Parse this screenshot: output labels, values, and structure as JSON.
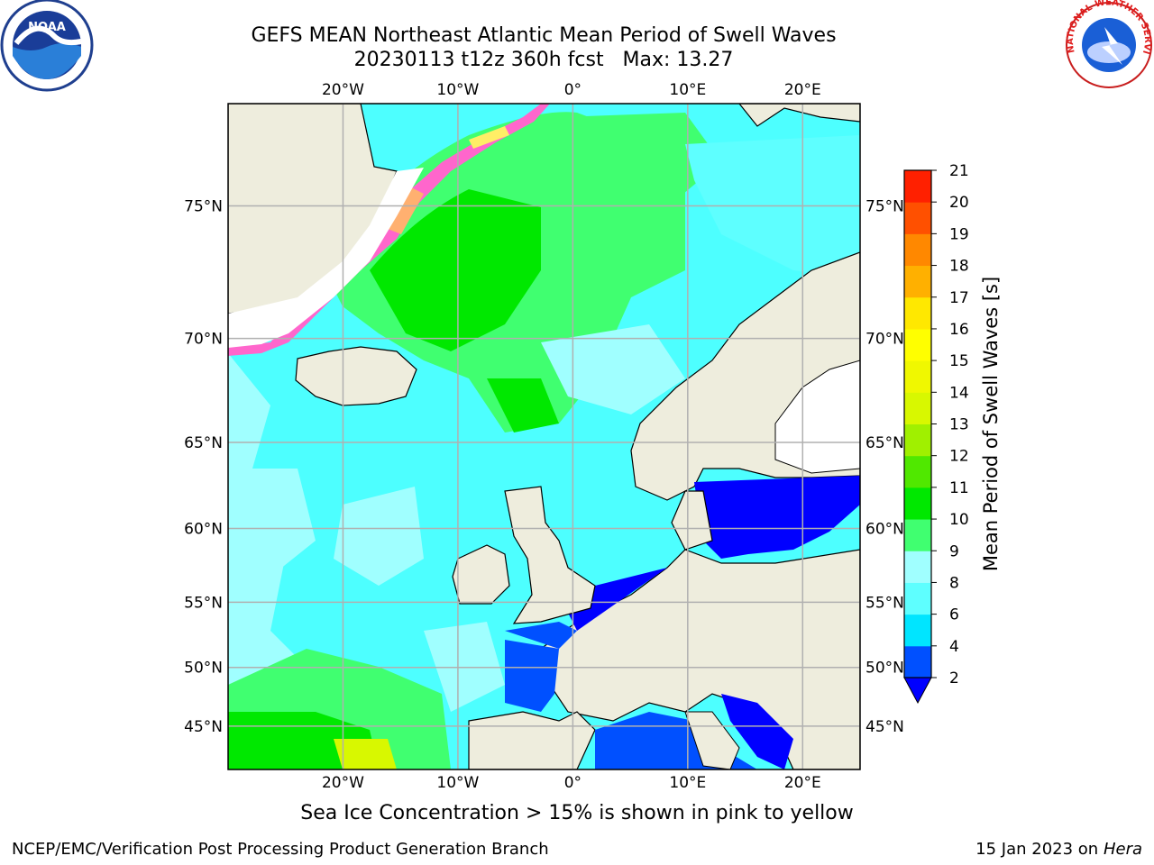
{
  "header": {
    "title_line1": "GEFS MEAN Northeast Atlantic Mean Period of Swell Waves",
    "title_line2": "20230113 t12z 360h fcst   Max: 13.27"
  },
  "map": {
    "lon_range": [
      -30,
      25
    ],
    "lat_range": [
      41,
      78
    ],
    "lon_ticks": [
      {
        "value": -20,
        "label": "20°W"
      },
      {
        "value": -10,
        "label": "10°W"
      },
      {
        "value": 0,
        "label": "0°"
      },
      {
        "value": 10,
        "label": "10°E"
      },
      {
        "value": 20,
        "label": "20°E"
      }
    ],
    "lat_ticks": [
      {
        "value": 75,
        "label": "75°N"
      },
      {
        "value": 70,
        "label": "70°N"
      },
      {
        "value": 65,
        "label": "65°N"
      },
      {
        "value": 60,
        "label": "60°N"
      },
      {
        "value": 55,
        "label": "55°N"
      },
      {
        "value": 50,
        "label": "50°N"
      },
      {
        "value": 45,
        "label": "45°N"
      }
    ],
    "ocean_color": "#4dffff",
    "land_color": "#eeeddd",
    "grid_color": "#b0b0b0"
  },
  "colorbar": {
    "label": "Mean Period of Swell Waves [s]",
    "ticks": [
      "2",
      "4",
      "6",
      "8",
      "9",
      "10",
      "11",
      "12",
      "13",
      "14",
      "15",
      "16",
      "17",
      "18",
      "19",
      "20",
      "21"
    ],
    "colors": [
      "#0050ff",
      "#00e5ff",
      "#5effff",
      "#a0ffff",
      "#40ff70",
      "#00e800",
      "#50e800",
      "#a0f000",
      "#d8f800",
      "#f0f800",
      "#ffff00",
      "#ffe800",
      "#ffb000",
      "#ff8800",
      "#ff5000",
      "#ff2000"
    ],
    "extend_color": "#0000ff"
  },
  "caption": "Sea Ice Concentration > 15% is shown in pink to yellow",
  "footer": {
    "left": "NCEP/EMC/Verification Post Processing Product Generation Branch",
    "right_date": "15 Jan 2023 on ",
    "right_host": "Hera"
  },
  "logos": {
    "noaa_text": "NOAA",
    "nws_text": "NATIONAL WEATHER SERVICE"
  }
}
